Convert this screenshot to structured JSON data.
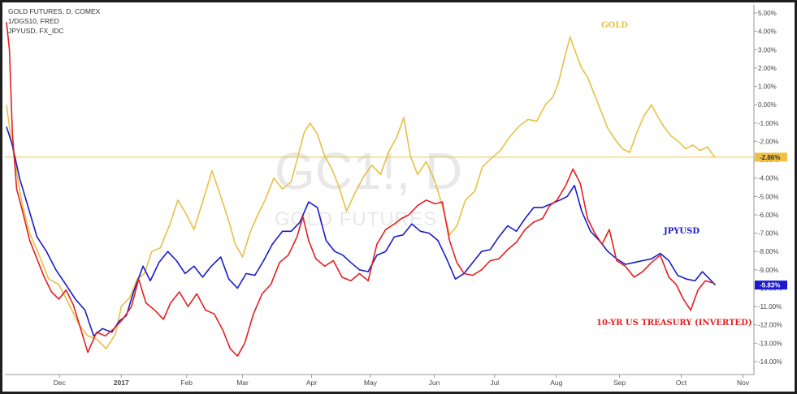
{
  "chart_data": {
    "type": "line",
    "legend": [
      "GOLD FUTURES, D, COMEX",
      "1/DGS10, FRED",
      "JPYUSD, FX_IDC"
    ],
    "watermark": {
      "symbol": "GC1!, D",
      "name": "GOLD FUTURES"
    },
    "x_ticks": [
      "Dec",
      "2017",
      "Feb",
      "Mar",
      "Apr",
      "May",
      "Jun",
      "Jul",
      "Aug",
      "Sep",
      "Oct",
      "Nov"
    ],
    "y_ticks": [
      "5.00%",
      "4.00%",
      "3.00%",
      "2.00%",
      "1.00%",
      "0.00%",
      "-1.00%",
      "-2.00%",
      "-3.00%",
      "-4.00%",
      "-5.00%",
      "-6.00%",
      "-7.00%",
      "-8.00%",
      "-9.00%",
      "-10.00%",
      "-11.00%",
      "-12.00%",
      "-13.00%",
      "-14.00%"
    ],
    "ylim": [
      -14.8,
      5.5
    ],
    "x_range": [
      0,
      1
    ],
    "x_tick_positions": [
      0.073,
      0.158,
      0.248,
      0.325,
      0.42,
      0.501,
      0.589,
      0.672,
      0.757,
      0.844,
      0.929,
      1.014
    ],
    "reference_line": {
      "value": -2.86,
      "label": "-2.86%",
      "color": "#f0c040"
    },
    "last_value_badge": {
      "value": -9.83,
      "label": "-9.83%",
      "color": "#1a1acc"
    },
    "annotations": {
      "gold": "GOLD",
      "jpy": "JPYUSD",
      "treasury": "10-YR US TREASURY (INVERTED)"
    },
    "series": [
      {
        "name": "GOLD FUTURES, D, COMEX",
        "color": "#e8c044",
        "points": [
          [
            0.0,
            0.0
          ],
          [
            0.005,
            -1.5
          ],
          [
            0.012,
            -3.2
          ],
          [
            0.022,
            -5.5
          ],
          [
            0.032,
            -7.0
          ],
          [
            0.045,
            -8.2
          ],
          [
            0.058,
            -9.5
          ],
          [
            0.072,
            -9.8
          ],
          [
            0.085,
            -10.8
          ],
          [
            0.1,
            -12.0
          ],
          [
            0.112,
            -12.6
          ],
          [
            0.125,
            -12.8
          ],
          [
            0.137,
            -13.3
          ],
          [
            0.15,
            -12.5
          ],
          [
            0.158,
            -11.0
          ],
          [
            0.17,
            -10.5
          ],
          [
            0.18,
            -9.5
          ],
          [
            0.19,
            -9.2
          ],
          [
            0.2,
            -8.0
          ],
          [
            0.212,
            -7.8
          ],
          [
            0.225,
            -6.5
          ],
          [
            0.236,
            -5.2
          ],
          [
            0.248,
            -6.0
          ],
          [
            0.258,
            -6.8
          ],
          [
            0.27,
            -5.3
          ],
          [
            0.283,
            -3.6
          ],
          [
            0.295,
            -5.0
          ],
          [
            0.305,
            -6.2
          ],
          [
            0.315,
            -7.6
          ],
          [
            0.325,
            -8.3
          ],
          [
            0.335,
            -7.0
          ],
          [
            0.346,
            -6.0
          ],
          [
            0.356,
            -5.2
          ],
          [
            0.368,
            -4.0
          ],
          [
            0.38,
            -4.6
          ],
          [
            0.392,
            -4.2
          ],
          [
            0.4,
            -3.0
          ],
          [
            0.41,
            -1.5
          ],
          [
            0.418,
            -1.0
          ],
          [
            0.428,
            -1.6
          ],
          [
            0.438,
            -2.8
          ],
          [
            0.448,
            -3.5
          ],
          [
            0.458,
            -4.5
          ],
          [
            0.468,
            -5.8
          ],
          [
            0.48,
            -4.8
          ],
          [
            0.492,
            -3.9
          ],
          [
            0.503,
            -3.3
          ],
          [
            0.515,
            -3.8
          ],
          [
            0.527,
            -2.5
          ],
          [
            0.537,
            -1.8
          ],
          [
            0.547,
            -0.7
          ],
          [
            0.556,
            -2.8
          ],
          [
            0.566,
            -3.8
          ],
          [
            0.578,
            -3.1
          ],
          [
            0.59,
            -4.2
          ],
          [
            0.6,
            -5.5
          ],
          [
            0.61,
            -7.1
          ],
          [
            0.62,
            -6.6
          ],
          [
            0.632,
            -5.2
          ],
          [
            0.645,
            -4.7
          ],
          [
            0.655,
            -3.4
          ],
          [
            0.668,
            -2.9
          ],
          [
            0.68,
            -2.5
          ],
          [
            0.692,
            -1.8
          ],
          [
            0.705,
            -1.2
          ],
          [
            0.718,
            -0.8
          ],
          [
            0.73,
            -0.9
          ],
          [
            0.742,
            0.0
          ],
          [
            0.752,
            0.4
          ],
          [
            0.76,
            1.2
          ],
          [
            0.768,
            2.5
          ],
          [
            0.776,
            3.7
          ],
          [
            0.784,
            2.8
          ],
          [
            0.792,
            2.0
          ],
          [
            0.8,
            1.5
          ],
          [
            0.81,
            0.5
          ],
          [
            0.818,
            -0.3
          ],
          [
            0.828,
            -1.3
          ],
          [
            0.838,
            -1.9
          ],
          [
            0.848,
            -2.4
          ],
          [
            0.858,
            -2.6
          ],
          [
            0.868,
            -1.5
          ],
          [
            0.878,
            -0.6
          ],
          [
            0.888,
            0.0
          ],
          [
            0.896,
            -0.6
          ],
          [
            0.905,
            -1.2
          ],
          [
            0.915,
            -1.7
          ],
          [
            0.925,
            -2.0
          ],
          [
            0.935,
            -2.4
          ],
          [
            0.945,
            -2.2
          ],
          [
            0.955,
            -2.5
          ],
          [
            0.965,
            -2.3
          ],
          [
            0.975,
            -2.86
          ]
        ]
      },
      {
        "name": "JPYUSD, FX_IDC",
        "color": "#1a1acc",
        "points": [
          [
            0.0,
            -1.2
          ],
          [
            0.008,
            -2.2
          ],
          [
            0.018,
            -4.0
          ],
          [
            0.03,
            -5.6
          ],
          [
            0.042,
            -7.2
          ],
          [
            0.055,
            -8.0
          ],
          [
            0.068,
            -9.0
          ],
          [
            0.08,
            -9.7
          ],
          [
            0.095,
            -10.6
          ],
          [
            0.108,
            -11.2
          ],
          [
            0.12,
            -12.6
          ],
          [
            0.132,
            -12.2
          ],
          [
            0.145,
            -12.4
          ],
          [
            0.155,
            -11.8
          ],
          [
            0.165,
            -11.5
          ],
          [
            0.175,
            -10.2
          ],
          [
            0.188,
            -8.8
          ],
          [
            0.198,
            -9.6
          ],
          [
            0.21,
            -8.6
          ],
          [
            0.222,
            -8.0
          ],
          [
            0.234,
            -8.5
          ],
          [
            0.246,
            -9.2
          ],
          [
            0.258,
            -8.8
          ],
          [
            0.27,
            -9.4
          ],
          [
            0.282,
            -8.8
          ],
          [
            0.295,
            -8.3
          ],
          [
            0.306,
            -9.5
          ],
          [
            0.318,
            -10.0
          ],
          [
            0.33,
            -9.2
          ],
          [
            0.342,
            -9.3
          ],
          [
            0.354,
            -8.5
          ],
          [
            0.366,
            -7.6
          ],
          [
            0.38,
            -6.9
          ],
          [
            0.392,
            -6.9
          ],
          [
            0.404,
            -6.4
          ],
          [
            0.416,
            -5.3
          ],
          [
            0.428,
            -5.6
          ],
          [
            0.44,
            -7.4
          ],
          [
            0.452,
            -8.0
          ],
          [
            0.463,
            -8.2
          ],
          [
            0.474,
            -8.6
          ],
          [
            0.486,
            -9.0
          ],
          [
            0.498,
            -9.1
          ],
          [
            0.51,
            -8.2
          ],
          [
            0.522,
            -8.0
          ],
          [
            0.534,
            -7.2
          ],
          [
            0.546,
            -7.1
          ],
          [
            0.558,
            -6.5
          ],
          [
            0.57,
            -6.9
          ],
          [
            0.582,
            -7.0
          ],
          [
            0.594,
            -7.4
          ],
          [
            0.606,
            -8.4
          ],
          [
            0.618,
            -9.5
          ],
          [
            0.63,
            -9.2
          ],
          [
            0.642,
            -8.6
          ],
          [
            0.654,
            -8.0
          ],
          [
            0.666,
            -7.9
          ],
          [
            0.678,
            -7.2
          ],
          [
            0.69,
            -6.6
          ],
          [
            0.702,
            -6.9
          ],
          [
            0.714,
            -6.2
          ],
          [
            0.726,
            -5.6
          ],
          [
            0.738,
            -5.6
          ],
          [
            0.75,
            -5.4
          ],
          [
            0.762,
            -5.2
          ],
          [
            0.772,
            -5.0
          ],
          [
            0.782,
            -4.4
          ],
          [
            0.792,
            -5.8
          ],
          [
            0.804,
            -6.9
          ],
          [
            0.816,
            -7.4
          ],
          [
            0.828,
            -8.0
          ],
          [
            0.84,
            -8.4
          ],
          [
            0.852,
            -8.7
          ],
          [
            0.864,
            -8.6
          ],
          [
            0.876,
            -8.5
          ],
          [
            0.888,
            -8.4
          ],
          [
            0.9,
            -8.1
          ],
          [
            0.912,
            -8.5
          ],
          [
            0.924,
            -9.3
          ],
          [
            0.936,
            -9.5
          ],
          [
            0.948,
            -9.6
          ],
          [
            0.958,
            -9.1
          ],
          [
            0.968,
            -9.5
          ],
          [
            0.976,
            -9.83
          ]
        ]
      },
      {
        "name": "1/DGS10, FRED",
        "color": "#e32020",
        "points": [
          [
            0.0,
            4.5
          ],
          [
            0.004,
            3.0
          ],
          [
            0.008,
            -1.5
          ],
          [
            0.014,
            -4.6
          ],
          [
            0.022,
            -5.8
          ],
          [
            0.032,
            -7.4
          ],
          [
            0.042,
            -8.4
          ],
          [
            0.052,
            -9.4
          ],
          [
            0.062,
            -10.2
          ],
          [
            0.072,
            -10.6
          ],
          [
            0.082,
            -10.1
          ],
          [
            0.092,
            -10.9
          ],
          [
            0.102,
            -12.2
          ],
          [
            0.112,
            -13.5
          ],
          [
            0.124,
            -12.4
          ],
          [
            0.136,
            -12.6
          ],
          [
            0.148,
            -12.2
          ],
          [
            0.16,
            -11.7
          ],
          [
            0.172,
            -11.0
          ],
          [
            0.182,
            -9.5
          ],
          [
            0.192,
            -10.8
          ],
          [
            0.204,
            -11.2
          ],
          [
            0.216,
            -11.7
          ],
          [
            0.226,
            -10.8
          ],
          [
            0.238,
            -10.2
          ],
          [
            0.25,
            -11.0
          ],
          [
            0.262,
            -10.3
          ],
          [
            0.274,
            -11.2
          ],
          [
            0.286,
            -11.4
          ],
          [
            0.298,
            -12.3
          ],
          [
            0.308,
            -13.3
          ],
          [
            0.318,
            -13.7
          ],
          [
            0.328,
            -13.0
          ],
          [
            0.34,
            -11.4
          ],
          [
            0.352,
            -10.3
          ],
          [
            0.364,
            -9.8
          ],
          [
            0.376,
            -8.6
          ],
          [
            0.388,
            -8.2
          ],
          [
            0.4,
            -7.2
          ],
          [
            0.408,
            -6.1
          ],
          [
            0.416,
            -7.4
          ],
          [
            0.426,
            -8.4
          ],
          [
            0.438,
            -8.8
          ],
          [
            0.45,
            -8.5
          ],
          [
            0.462,
            -9.4
          ],
          [
            0.474,
            -9.6
          ],
          [
            0.486,
            -9.2
          ],
          [
            0.498,
            -9.6
          ],
          [
            0.51,
            -7.6
          ],
          [
            0.522,
            -6.8
          ],
          [
            0.534,
            -6.5
          ],
          [
            0.544,
            -6.2
          ],
          [
            0.554,
            -6.0
          ],
          [
            0.566,
            -5.5
          ],
          [
            0.578,
            -5.2
          ],
          [
            0.59,
            -5.4
          ],
          [
            0.6,
            -5.3
          ],
          [
            0.61,
            -7.4
          ],
          [
            0.62,
            -8.6
          ],
          [
            0.63,
            -9.2
          ],
          [
            0.642,
            -9.3
          ],
          [
            0.654,
            -9.0
          ],
          [
            0.666,
            -8.5
          ],
          [
            0.678,
            -8.4
          ],
          [
            0.69,
            -7.9
          ],
          [
            0.702,
            -7.5
          ],
          [
            0.714,
            -6.8
          ],
          [
            0.726,
            -6.4
          ],
          [
            0.738,
            -6.2
          ],
          [
            0.748,
            -5.5
          ],
          [
            0.758,
            -5.2
          ],
          [
            0.77,
            -4.4
          ],
          [
            0.78,
            -3.5
          ],
          [
            0.79,
            -4.3
          ],
          [
            0.8,
            -6.2
          ],
          [
            0.81,
            -7.0
          ],
          [
            0.82,
            -7.6
          ],
          [
            0.83,
            -6.8
          ],
          [
            0.84,
            -8.5
          ],
          [
            0.852,
            -8.8
          ],
          [
            0.864,
            -9.4
          ],
          [
            0.876,
            -9.1
          ],
          [
            0.888,
            -8.6
          ],
          [
            0.9,
            -8.2
          ],
          [
            0.912,
            -9.4
          ],
          [
            0.922,
            -9.8
          ],
          [
            0.932,
            -10.6
          ],
          [
            0.942,
            -11.2
          ],
          [
            0.952,
            -10.1
          ],
          [
            0.962,
            -9.6
          ],
          [
            0.972,
            -9.7
          ]
        ]
      }
    ]
  }
}
